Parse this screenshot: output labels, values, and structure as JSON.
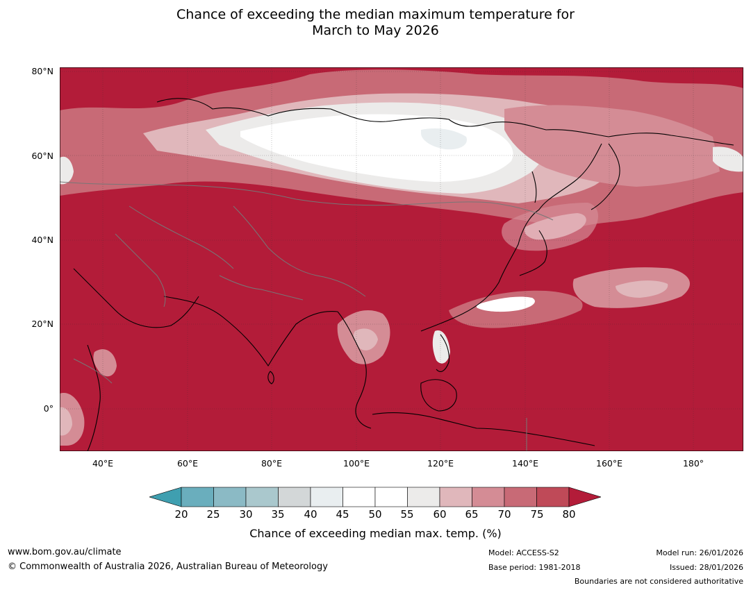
{
  "title": {
    "line1": "Chance of exceeding the median maximum temperature for",
    "line2": "March to May 2026"
  },
  "map": {
    "lat_labels": [
      "80°N",
      "60°N",
      "40°N",
      "20°N",
      "0°"
    ],
    "lon_labels": [
      "40°E",
      "60°E",
      "80°E",
      "100°E",
      "120°E",
      "140°E",
      "160°E",
      "180°"
    ],
    "lon_range": [
      30,
      191
    ],
    "lat_range": [
      -10,
      81
    ]
  },
  "legend": {
    "ticks": [
      "20",
      "25",
      "30",
      "35",
      "40",
      "45",
      "50",
      "55",
      "60",
      "65",
      "70",
      "75",
      "80"
    ],
    "colors": [
      "#3f9fb0",
      "#6aaebd",
      "#8bbac5",
      "#aac8cd",
      "#d3d7d8",
      "#e9eef0",
      "#ffffff",
      "#ffffff",
      "#ecebea",
      "#e0b7bb",
      "#d48c95",
      "#c86a76",
      "#bf4a58",
      "#b31c39"
    ],
    "caption": "Chance of exceeding median max. temp. (%)"
  },
  "footer": {
    "website": "www.bom.gov.au/climate",
    "copyright": "© Commonwealth of Australia 2026, Australian Bureau of Meteorology",
    "model": "Model: ACCESS-S2",
    "base_period": "Base period: 1981-2018",
    "model_run": "Model run: 26/01/2026",
    "issued": "Issued: 28/01/2026",
    "disclaimer": "Boundaries are not considered authoritative"
  }
}
